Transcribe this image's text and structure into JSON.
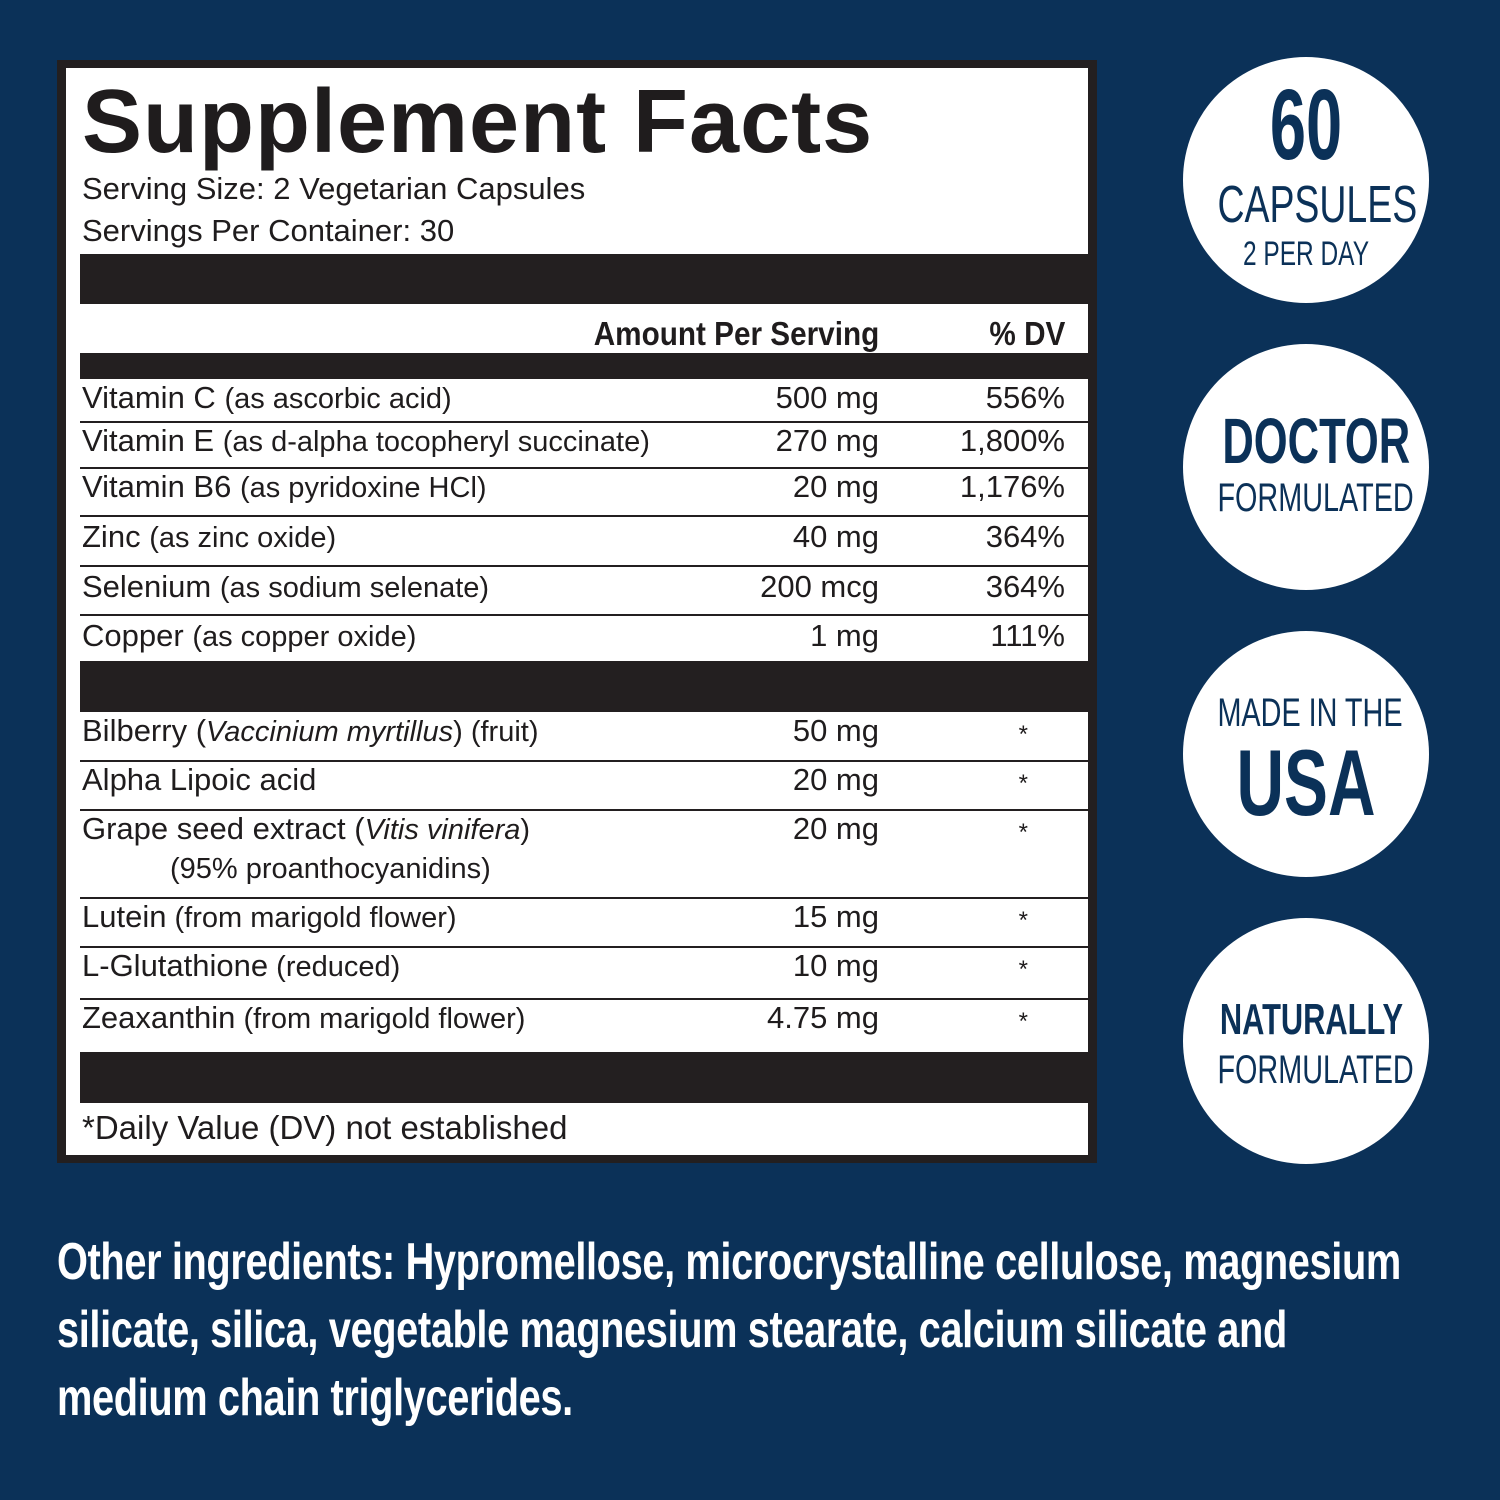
{
  "colors": {
    "background": "#0b3158",
    "label_ink": "#231f20",
    "badge": "#ffffff"
  },
  "facts": {
    "title": "Supplement Facts",
    "serving_size": "Serving Size: 2 Vegetarian Capsules",
    "servings_per_container": "Servings Per Container: 30",
    "header_amount": "Amount Per Serving",
    "header_dv": "% DV",
    "vitamins": [
      {
        "name": "Vitamin C",
        "source": "(as ascorbic acid)",
        "amount": "500 mg",
        "dv": "556%"
      },
      {
        "name": "Vitamin E",
        "source": "(as d-alpha tocopheryl succinate)",
        "amount": "270 mg",
        "dv": "1,800%"
      },
      {
        "name": "Vitamin B6",
        "source": "(as pyridoxine HCl)",
        "amount": "20 mg",
        "dv": "1,176%"
      },
      {
        "name": "Zinc",
        "source": "(as zinc oxide)",
        "amount": "40 mg",
        "dv": "364%"
      },
      {
        "name": "Selenium",
        "source": "(as sodium selenate)",
        "amount": "200 mcg",
        "dv": "364%"
      },
      {
        "name": "Copper",
        "source": "(as copper oxide)",
        "amount": "1 mg",
        "dv": "111%"
      }
    ],
    "others": [
      {
        "name": "Bilberry (",
        "latin": "Vaccinium myrtillus",
        "after": ") (fruit)",
        "amount": "50 mg",
        "dv": "*"
      },
      {
        "name": "Alpha Lipoic acid",
        "latin": "",
        "after": "",
        "amount": "20 mg",
        "dv": "*"
      },
      {
        "name": "Grape seed extract (",
        "latin": "Vitis vinifera",
        "after": ")",
        "line2": "(95% proanthocyanidins)",
        "amount": "20 mg",
        "dv": "*"
      },
      {
        "name": "Lutein",
        "latin": "",
        "after": " (from marigold flower)",
        "amount": "15 mg",
        "dv": "*"
      },
      {
        "name": "L-Glutathione",
        "latin": "",
        "after": " (reduced)",
        "amount": "10 mg",
        "dv": "*"
      },
      {
        "name": "Zeaxanthin",
        "latin": "",
        "after": " (from marigold flower)",
        "amount": "4.75 mg",
        "dv": "*"
      }
    ],
    "footnote": "*Daily Value (DV) not established"
  },
  "badges": [
    {
      "big": "60",
      "line2": "CAPSULES",
      "line3": "2 PER DAY"
    },
    {
      "line1": "DOCTOR",
      "line2": "FORMULATED"
    },
    {
      "line1": "MADE IN THE",
      "big": "USA"
    },
    {
      "line1": "NATURALLY",
      "line2": "FORMULATED"
    }
  ],
  "other_ingredients": {
    "label": "Other ingredients:",
    "text": " Hypromellose, microcrystalline cellulose, magnesium silicate, silica, vegetable magnesium stearate, calcium silicate and medium chain triglycerides."
  }
}
